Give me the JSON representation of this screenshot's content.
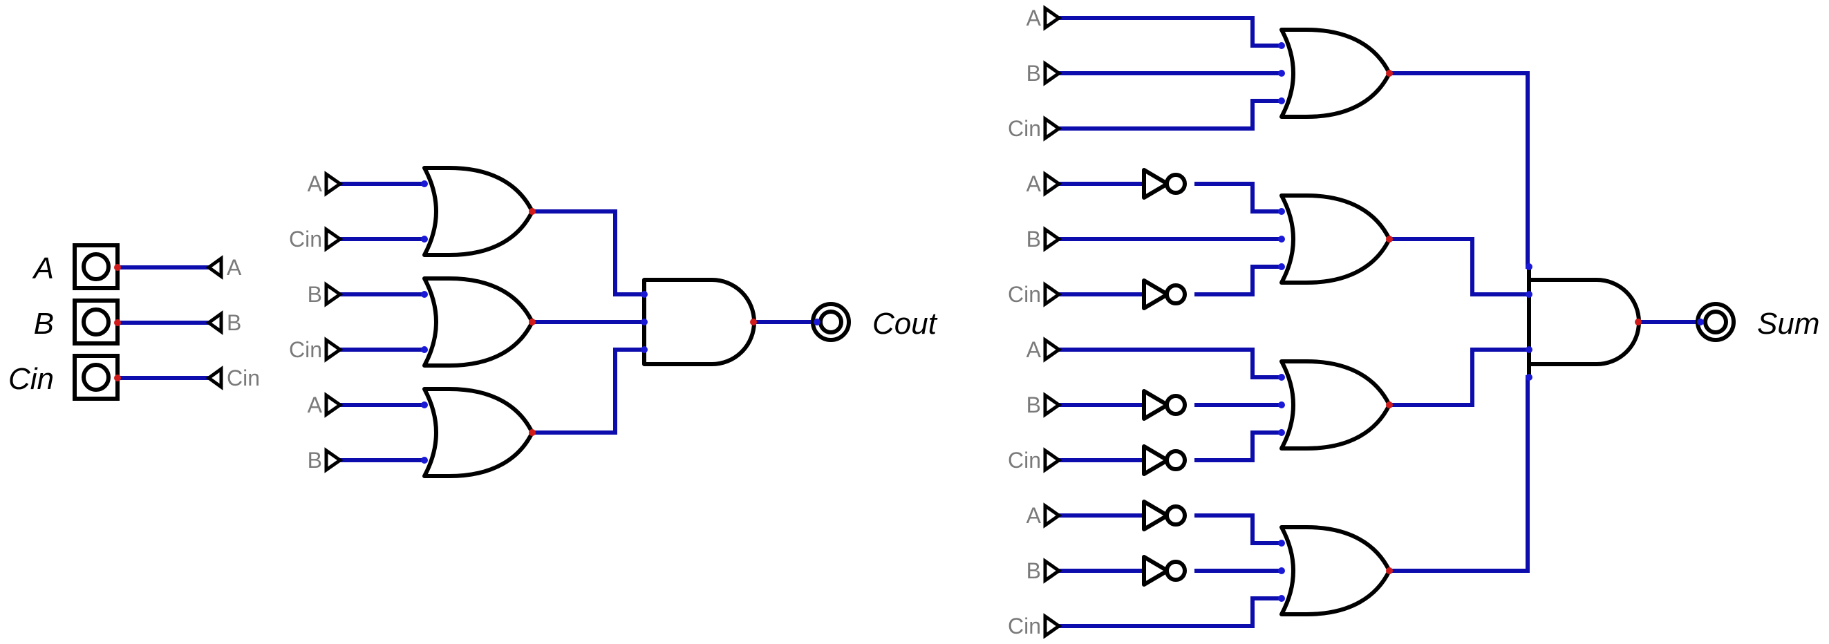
{
  "inputs": [
    "A",
    "B",
    "Cin"
  ],
  "outputs": {
    "carry": "Cout",
    "sum": "Sum"
  },
  "colors": {
    "wire": "#0d0dad",
    "gate": "#000000",
    "input_port": "#1a1ad6",
    "output_port": "#d11a1a",
    "tunnel_text": "#7a7a7a"
  },
  "carry_circuit": {
    "or_gates": [
      {
        "inputs": [
          "A",
          "Cin"
        ],
        "inverted": [
          false,
          false
        ]
      },
      {
        "inputs": [
          "B",
          "Cin"
        ],
        "inverted": [
          false,
          false
        ]
      },
      {
        "inputs": [
          "A",
          "B"
        ],
        "inverted": [
          false,
          false
        ]
      }
    ],
    "and_gate_inputs": 3,
    "output": "Cout"
  },
  "sum_circuit": {
    "or_gates": [
      {
        "inputs": [
          "A",
          "B",
          "Cin"
        ],
        "inverted": [
          false,
          false,
          false
        ]
      },
      {
        "inputs": [
          "A",
          "B",
          "Cin"
        ],
        "inverted": [
          true,
          false,
          true
        ]
      },
      {
        "inputs": [
          "A",
          "B",
          "Cin"
        ],
        "inverted": [
          false,
          true,
          true
        ]
      },
      {
        "inputs": [
          "A",
          "B",
          "Cin"
        ],
        "inverted": [
          true,
          true,
          false
        ]
      }
    ],
    "and_gate_inputs": 4,
    "output": "Sum"
  }
}
